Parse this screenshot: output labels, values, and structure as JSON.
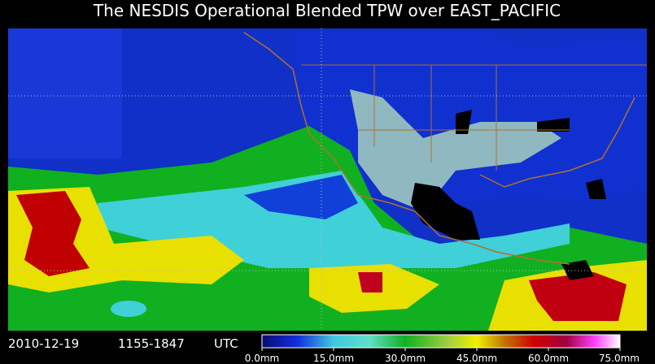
{
  "title": "The NESDIS Operational Blended TPW over EAST_PACIFIC",
  "footer": {
    "date": "2010-12-19",
    "time_range": "1155-1847",
    "timezone": "UTC"
  },
  "colorbar": {
    "labels": [
      "0.0mm",
      "15.0mm",
      "30.0mm",
      "45.0mm",
      "60.0mm",
      "75.0mm"
    ]
  }
}
